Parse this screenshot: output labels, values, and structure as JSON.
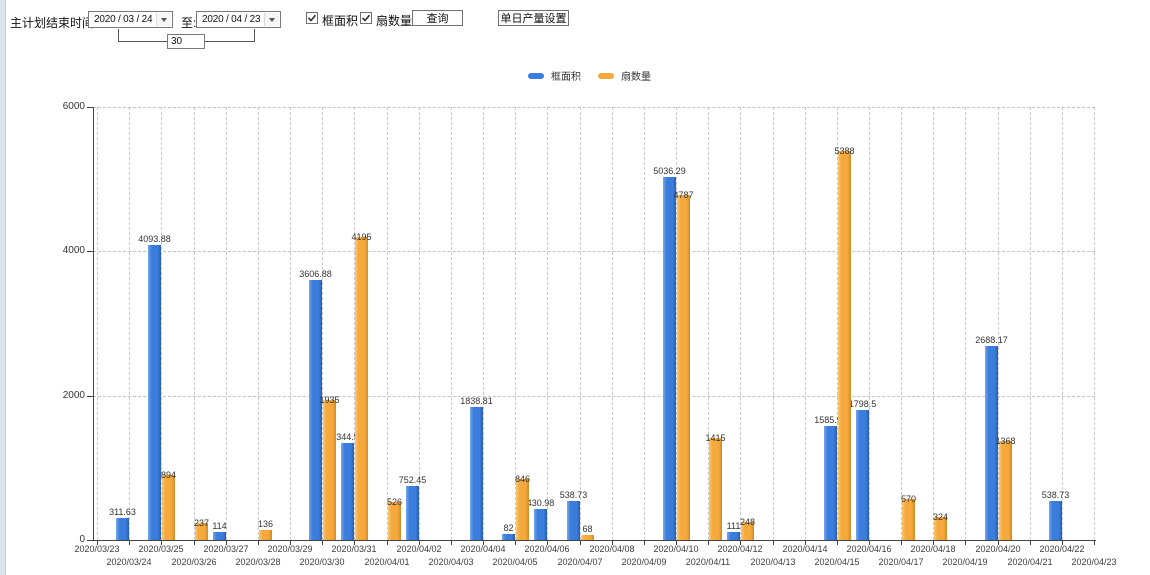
{
  "toolbar": {
    "label_plan_end": "主计划结束时间:",
    "date_from": "2020 / 03 / 24",
    "to_label": "至:",
    "date_to": "2020 / 04 / 23",
    "days_between": "30",
    "checkboxes": [
      {
        "label": "框面积",
        "checked": true
      },
      {
        "label": "扇数量",
        "checked": true
      }
    ],
    "query_button": "查询",
    "daily_output_button": "单日产量设置"
  },
  "legend": [
    {
      "label": "框面积",
      "color": "#3b7ddd"
    },
    {
      "label": "扇数量",
      "color": "#f5a93c"
    }
  ],
  "chart_data": {
    "type": "bar",
    "title": "",
    "xlabel": "",
    "ylabel": "",
    "ylim": [
      0,
      6000
    ],
    "yticks": [
      0,
      2000,
      4000,
      6000
    ],
    "grid": "dashed",
    "legend_position": "top-center",
    "categories": [
      "2020/03/23",
      "2020/03/24",
      "2020/03/25",
      "2020/03/26",
      "2020/03/27",
      "2020/03/28",
      "2020/03/29",
      "2020/03/30",
      "2020/03/31",
      "2020/04/01",
      "2020/04/02",
      "2020/04/03",
      "2020/04/04",
      "2020/04/05",
      "2020/04/06",
      "2020/04/07",
      "2020/04/08",
      "2020/04/09",
      "2020/04/10",
      "2020/04/11",
      "2020/04/12",
      "2020/04/13",
      "2020/04/14",
      "2020/04/15",
      "2020/04/16",
      "2020/04/17",
      "2020/04/18",
      "2020/04/19",
      "2020/04/20",
      "2020/04/21",
      "2020/04/22",
      "2020/04/23"
    ],
    "series": [
      {
        "name": "框面积",
        "color": "#3b7ddd",
        "values": [
          null,
          311.63,
          4093.88,
          null,
          114,
          null,
          null,
          3606.88,
          1344.95,
          null,
          752.45,
          null,
          1838.81,
          82,
          430.98,
          538.73,
          null,
          null,
          5036.29,
          null,
          111,
          null,
          null,
          1585.96,
          1798.5,
          null,
          null,
          null,
          2688.17,
          null,
          538.73,
          null
        ]
      },
      {
        "name": "扇数量",
        "color": "#f5a93c",
        "values": [
          null,
          null,
          894,
          237,
          null,
          136,
          null,
          1935,
          4195,
          526,
          null,
          null,
          null,
          846,
          null,
          68,
          null,
          null,
          4787,
          1415,
          248,
          null,
          null,
          5388,
          null,
          570,
          324,
          null,
          1368,
          null,
          null,
          null
        ]
      }
    ]
  }
}
